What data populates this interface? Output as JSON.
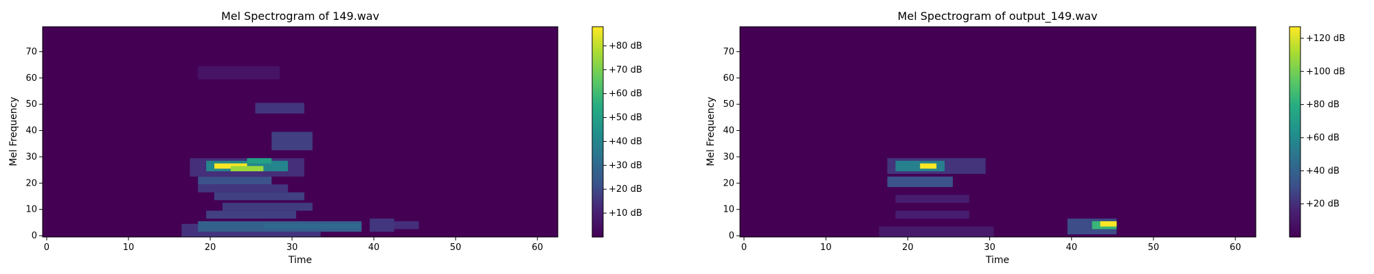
{
  "figure": {
    "background": "#ffffff"
  },
  "chart_data": [
    {
      "type": "heatmap",
      "title": "Mel Spectrogram of 149.wav",
      "xlabel": "Time",
      "ylabel": "Mel Frequency",
      "xlim": [
        -0.5,
        62.5
      ],
      "ylim": [
        -0.5,
        79.5
      ],
      "xticks": [
        0,
        10,
        20,
        30,
        40,
        50,
        60
      ],
      "xtick_labels": [
        "0",
        "10",
        "20",
        "30",
        "40",
        "50",
        "60"
      ],
      "yticks": [
        0,
        10,
        20,
        30,
        40,
        50,
        60,
        70
      ],
      "ytick_labels": [
        "0",
        "10",
        "20",
        "30",
        "40",
        "50",
        "60",
        "70"
      ],
      "colormap": "viridis",
      "colorbar": {
        "min": 0,
        "max": 88,
        "ticks": [
          10,
          20,
          30,
          40,
          50,
          60,
          70,
          80
        ],
        "tick_labels": [
          "+10 dB",
          "+20 dB",
          "+30 dB",
          "+40 dB",
          "+50 dB",
          "+60 dB",
          "+70 dB",
          "+80 dB"
        ]
      },
      "background_value": 0,
      "blobs": [
        {
          "x": [
            17,
            33
          ],
          "y": [
            0,
            4
          ],
          "value": 15
        },
        {
          "x": [
            19,
            38
          ],
          "y": [
            2,
            5
          ],
          "value": 27
        },
        {
          "x": [
            27,
            38
          ],
          "y": [
            3,
            4
          ],
          "value": 30
        },
        {
          "x": [
            20,
            30
          ],
          "y": [
            7,
            9
          ],
          "value": 18
        },
        {
          "x": [
            22,
            32
          ],
          "y": [
            10,
            12
          ],
          "value": 17
        },
        {
          "x": [
            21,
            31
          ],
          "y": [
            14,
            16
          ],
          "value": 18
        },
        {
          "x": [
            19,
            29
          ],
          "y": [
            17,
            19
          ],
          "value": 16
        },
        {
          "x": [
            19,
            27
          ],
          "y": [
            20,
            22
          ],
          "value": 22
        },
        {
          "x": [
            18,
            31
          ],
          "y": [
            23,
            29
          ],
          "value": 14
        },
        {
          "x": [
            20,
            29
          ],
          "y": [
            25,
            28
          ],
          "value": 40
        },
        {
          "x": [
            21,
            24
          ],
          "y": [
            26,
            27
          ],
          "value": 88
        },
        {
          "x": [
            23,
            26
          ],
          "y": [
            25,
            26
          ],
          "value": 75
        },
        {
          "x": [
            25,
            27
          ],
          "y": [
            28,
            29
          ],
          "value": 50
        },
        {
          "x": [
            28,
            32
          ],
          "y": [
            33,
            39
          ],
          "value": 18
        },
        {
          "x": [
            26,
            31
          ],
          "y": [
            47,
            50
          ],
          "value": 16
        },
        {
          "x": [
            19,
            28
          ],
          "y": [
            60,
            64
          ],
          "value": 6
        },
        {
          "x": [
            40,
            42
          ],
          "y": [
            2,
            6
          ],
          "value": 16
        },
        {
          "x": [
            43,
            45
          ],
          "y": [
            3,
            5
          ],
          "value": 14
        }
      ]
    },
    {
      "type": "heatmap",
      "title": "Mel Spectrogram of output_149.wav",
      "xlabel": "Time",
      "ylabel": "Mel Frequency",
      "xlim": [
        -0.5,
        62.5
      ],
      "ylim": [
        -0.5,
        79.5
      ],
      "xticks": [
        0,
        10,
        20,
        30,
        40,
        50,
        60
      ],
      "xtick_labels": [
        "0",
        "10",
        "20",
        "30",
        "40",
        "50",
        "60"
      ],
      "yticks": [
        0,
        10,
        20,
        30,
        40,
        50,
        60,
        70
      ],
      "ytick_labels": [
        "0",
        "10",
        "20",
        "30",
        "40",
        "50",
        "60",
        "70"
      ],
      "colormap": "viridis",
      "colorbar": {
        "min": 0,
        "max": 127,
        "ticks": [
          20,
          40,
          60,
          80,
          100,
          120
        ],
        "tick_labels": [
          "+20 dB",
          "+40 dB",
          "+60 dB",
          "+80 dB",
          "+100 dB",
          "+120 dB"
        ]
      },
      "background_value": 0,
      "blobs": [
        {
          "x": [
            17,
            30
          ],
          "y": [
            0,
            3
          ],
          "value": 12
        },
        {
          "x": [
            19,
            27
          ],
          "y": [
            7,
            9
          ],
          "value": 14
        },
        {
          "x": [
            19,
            27
          ],
          "y": [
            13,
            15
          ],
          "value": 14
        },
        {
          "x": [
            18,
            25
          ],
          "y": [
            19,
            22
          ],
          "value": 32
        },
        {
          "x": [
            18,
            29
          ],
          "y": [
            24,
            29
          ],
          "value": 22
        },
        {
          "x": [
            19,
            24
          ],
          "y": [
            25,
            28
          ],
          "value": 55
        },
        {
          "x": [
            22,
            23
          ],
          "y": [
            26,
            27
          ],
          "value": 127
        },
        {
          "x": [
            40,
            45
          ],
          "y": [
            1,
            6
          ],
          "value": 30
        },
        {
          "x": [
            43,
            45
          ],
          "y": [
            3,
            5
          ],
          "value": 85
        },
        {
          "x": [
            44,
            45
          ],
          "y": [
            4,
            5
          ],
          "value": 127
        }
      ]
    }
  ]
}
